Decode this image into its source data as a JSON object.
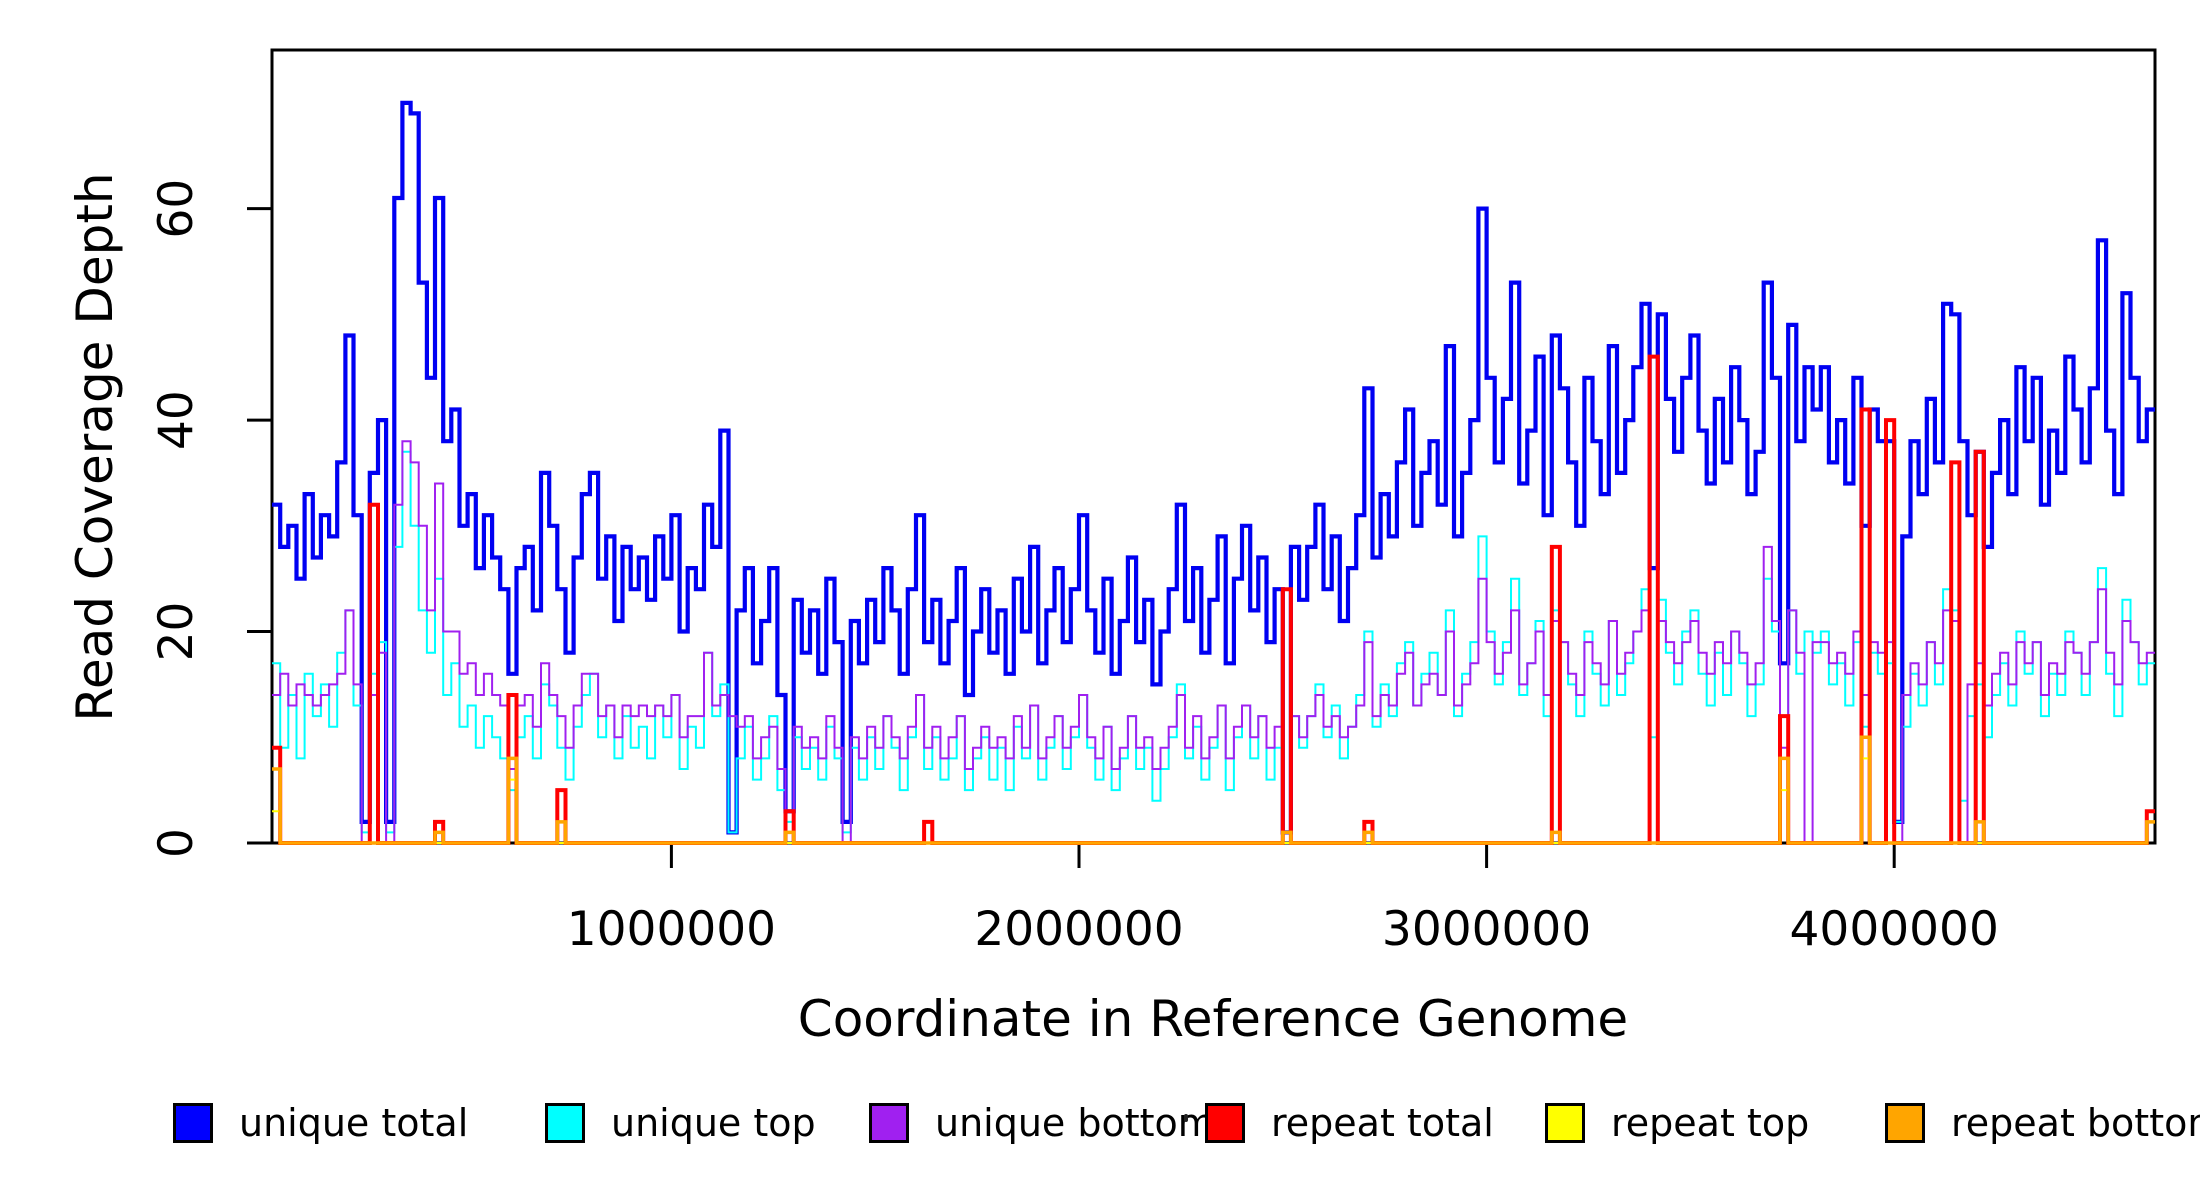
{
  "figure": {
    "background": "#ffffff"
  },
  "legend": {
    "items": [
      {
        "label": "unique total",
        "color": "#0000FF"
      },
      {
        "label": "unique top",
        "color": "#00FFFF"
      },
      {
        "label": "unique bottom",
        "color": "#A020F0"
      },
      {
        "label": "repeat total",
        "color": "#FF0000"
      },
      {
        "label": "repeat top",
        "color": "#FFFF00"
      },
      {
        "label": "repeat bottom",
        "color": "#FFA500"
      }
    ]
  },
  "chart_data": {
    "type": "line",
    "subtype": "step",
    "title": "",
    "xlabel": "Coordinate in Reference Genome",
    "ylabel": "Read Coverage Depth",
    "xlim": [
      20000,
      4640000
    ],
    "ylim": [
      0,
      75
    ],
    "x_ticks": [
      1000000,
      2000000,
      3000000,
      4000000
    ],
    "x_tick_labels": [
      "1000000",
      "2000000",
      "3000000",
      "4000000"
    ],
    "y_ticks": [
      0,
      20,
      40,
      60
    ],
    "y_tick_labels": [
      "0",
      "20",
      "40",
      "60"
    ],
    "grid": false,
    "legend_position": "bottom",
    "bin_start": 20000,
    "bin_size": 20000,
    "n_bins": 231,
    "axis_color": "#000000",
    "series": [
      {
        "name": "unique total",
        "color": "#0000F2",
        "width": 4.2,
        "values": [
          32,
          28,
          30,
          25,
          33,
          27,
          31,
          29,
          36,
          48,
          31,
          2,
          35,
          40,
          2,
          61,
          70,
          69,
          53,
          44,
          61,
          38,
          41,
          30,
          33,
          26,
          31,
          27,
          24,
          16,
          26,
          28,
          22,
          35,
          30,
          24,
          18,
          27,
          33,
          35,
          25,
          29,
          21,
          28,
          24,
          27,
          23,
          29,
          25,
          31,
          20,
          26,
          24,
          32,
          28,
          39,
          1,
          22,
          26,
          17,
          21,
          26,
          14,
          3,
          23,
          18,
          22,
          16,
          25,
          19,
          2,
          21,
          17,
          23,
          19,
          26,
          22,
          16,
          24,
          31,
          19,
          23,
          17,
          21,
          26,
          14,
          20,
          24,
          18,
          22,
          16,
          25,
          20,
          28,
          17,
          22,
          26,
          19,
          24,
          31,
          22,
          18,
          25,
          16,
          21,
          27,
          19,
          23,
          15,
          20,
          24,
          32,
          21,
          26,
          18,
          23,
          29,
          17,
          25,
          30,
          22,
          27,
          19,
          24,
          1,
          28,
          23,
          28,
          32,
          24,
          29,
          21,
          26,
          31,
          43,
          27,
          33,
          29,
          36,
          41,
          30,
          35,
          38,
          32,
          47,
          29,
          35,
          40,
          60,
          44,
          36,
          42,
          53,
          34,
          39,
          46,
          31,
          48,
          43,
          36,
          30,
          44,
          38,
          33,
          47,
          35,
          40,
          45,
          51,
          26,
          50,
          42,
          37,
          44,
          48,
          39,
          34,
          42,
          36,
          45,
          40,
          33,
          37,
          53,
          44,
          17,
          49,
          38,
          45,
          41,
          45,
          36,
          40,
          34,
          44,
          30,
          41,
          38,
          38,
          2,
          29,
          38,
          33,
          42,
          36,
          51,
          50,
          38,
          31,
          37,
          28,
          35,
          40,
          33,
          45,
          38,
          44,
          32,
          39,
          35,
          46,
          41,
          36,
          43,
          57,
          39,
          33,
          52,
          44,
          38,
          41
        ]
      },
      {
        "name": "unique top",
        "color": "#00FFFF",
        "width": 2,
        "values": [
          17,
          9,
          14,
          8,
          16,
          12,
          15,
          11,
          18,
          22,
          13,
          1,
          16,
          19,
          1,
          28,
          37,
          30,
          22,
          18,
          25,
          14,
          17,
          11,
          13,
          9,
          12,
          10,
          8,
          5,
          10,
          12,
          8,
          15,
          13,
          9,
          6,
          11,
          14,
          16,
          10,
          13,
          8,
          12,
          9,
          11,
          8,
          13,
          10,
          14,
          7,
          11,
          9,
          18,
          12,
          15,
          1,
          8,
          11,
          6,
          8,
          12,
          5,
          2,
          10,
          7,
          9,
          6,
          11,
          8,
          1,
          9,
          6,
          10,
          7,
          12,
          9,
          5,
          10,
          14,
          7,
          10,
          6,
          8,
          12,
          5,
          8,
          10,
          6,
          9,
          5,
          11,
          8,
          13,
          6,
          9,
          12,
          7,
          10,
          14,
          9,
          6,
          11,
          5,
          8,
          12,
          7,
          9,
          4,
          7,
          10,
          15,
          8,
          11,
          6,
          9,
          13,
          5,
          10,
          13,
          8,
          12,
          6,
          9,
          1,
          12,
          9,
          12,
          15,
          10,
          13,
          8,
          11,
          14,
          20,
          11,
          15,
          12,
          17,
          19,
          13,
          16,
          18,
          14,
          22,
          12,
          16,
          19,
          29,
          20,
          15,
          19,
          25,
          14,
          17,
          21,
          12,
          22,
          19,
          15,
          12,
          20,
          16,
          13,
          21,
          14,
          17,
          20,
          24,
          10,
          23,
          18,
          15,
          20,
          22,
          16,
          13,
          18,
          14,
          20,
          17,
          12,
          15,
          25,
          20,
          8,
          22,
          16,
          20,
          18,
          20,
          15,
          17,
          13,
          19,
          11,
          18,
          16,
          17,
          2,
          11,
          16,
          13,
          19,
          15,
          24,
          22,
          4,
          12,
          15,
          10,
          14,
          17,
          13,
          20,
          16,
          19,
          12,
          16,
          14,
          20,
          18,
          14,
          19,
          26,
          16,
          12,
          23,
          19,
          15,
          17
        ]
      },
      {
        "name": "unique bottom",
        "color": "#A020F0",
        "width": 2,
        "values": [
          14,
          16,
          13,
          15,
          14,
          13,
          14,
          15,
          16,
          22,
          15,
          0,
          14,
          18,
          0,
          32,
          38,
          36,
          30,
          22,
          34,
          20,
          20,
          16,
          17,
          14,
          16,
          14,
          13,
          7,
          13,
          14,
          11,
          17,
          14,
          12,
          9,
          13,
          16,
          16,
          12,
          13,
          10,
          13,
          12,
          13,
          12,
          13,
          12,
          14,
          10,
          12,
          12,
          18,
          13,
          14,
          12,
          11,
          12,
          8,
          10,
          11,
          7,
          0,
          11,
          9,
          10,
          8,
          12,
          9,
          0,
          10,
          8,
          11,
          9,
          12,
          10,
          8,
          11,
          14,
          9,
          11,
          8,
          10,
          12,
          7,
          9,
          11,
          9,
          10,
          8,
          12,
          9,
          13,
          8,
          10,
          12,
          9,
          11,
          14,
          10,
          8,
          11,
          7,
          9,
          12,
          9,
          10,
          7,
          9,
          11,
          14,
          9,
          12,
          8,
          10,
          13,
          8,
          11,
          13,
          10,
          12,
          9,
          11,
          0,
          12,
          10,
          12,
          14,
          11,
          12,
          10,
          11,
          13,
          19,
          12,
          14,
          13,
          16,
          18,
          13,
          15,
          16,
          14,
          20,
          13,
          15,
          17,
          25,
          19,
          16,
          18,
          22,
          15,
          17,
          20,
          14,
          21,
          19,
          16,
          14,
          19,
          17,
          15,
          21,
          16,
          18,
          20,
          22,
          0,
          21,
          19,
          17,
          19,
          21,
          18,
          16,
          19,
          17,
          20,
          18,
          15,
          17,
          28,
          21,
          9,
          22,
          18,
          0,
          19,
          19,
          17,
          18,
          16,
          20,
          14,
          19,
          18,
          19,
          0,
          14,
          17,
          15,
          19,
          17,
          22,
          21,
          0,
          15,
          17,
          13,
          16,
          18,
          15,
          19,
          17,
          19,
          14,
          17,
          16,
          19,
          18,
          16,
          19,
          24,
          18,
          15,
          21,
          19,
          17,
          18
        ]
      },
      {
        "name": "repeat total",
        "color": "#FF0000",
        "width": 4,
        "baseline": 0,
        "spikes": {
          "0": 9,
          "12": 32,
          "20": 2,
          "29": 14,
          "35": 5,
          "63": 3,
          "80": 2,
          "124": 24,
          "134": 2,
          "157": 28,
          "169": 46,
          "185": 12,
          "195": 41,
          "198": 40,
          "206": 36,
          "209": 37,
          "230": 3
        }
      },
      {
        "name": "repeat top",
        "color": "#FFFF00",
        "width": 2,
        "baseline": 0,
        "spikes": {
          "0": 3,
          "29": 6,
          "185": 5,
          "195": 8,
          "230": 2
        }
      },
      {
        "name": "repeat bottom",
        "color": "#FFA500",
        "width": 3.5,
        "baseline": 0,
        "spikes": {
          "0": 7,
          "20": 1,
          "29": 8,
          "35": 2,
          "63": 1,
          "124": 1,
          "134": 1,
          "157": 1,
          "185": 8,
          "195": 10,
          "209": 2,
          "230": 2
        }
      }
    ]
  }
}
